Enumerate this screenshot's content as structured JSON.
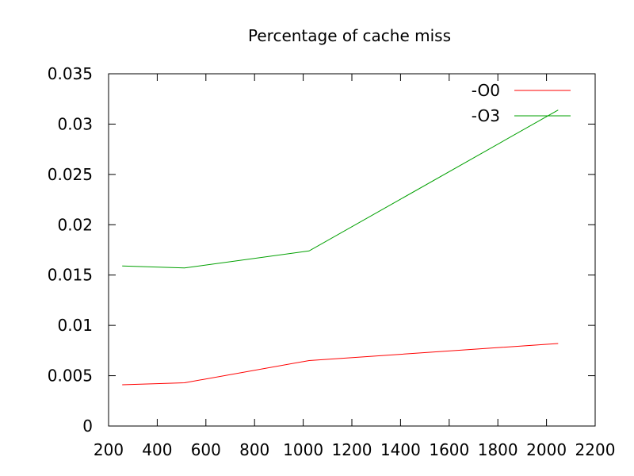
{
  "chart_data": {
    "type": "line",
    "title": "Percentage of cache miss",
    "xlabel": "",
    "ylabel": "",
    "xlim": [
      200,
      2200
    ],
    "ylim": [
      0,
      0.035
    ],
    "grid": false,
    "legend_position": "top-right",
    "x_ticks": [
      "200",
      "400",
      "600",
      "800",
      "1000",
      "1200",
      "1400",
      "1600",
      "1800",
      "2000",
      "2200"
    ],
    "y_ticks": [
      "0",
      "0.005",
      "0.01",
      "0.015",
      "0.02",
      "0.025",
      "0.03",
      "0.035"
    ],
    "x": [
      256,
      512,
      1024,
      2048
    ],
    "series": [
      {
        "name": "-O0",
        "color": "#ff0000",
        "values": [
          0.0041,
          0.0043,
          0.0065,
          0.0082
        ]
      },
      {
        "name": "-O3",
        "color": "#00a000",
        "values": [
          0.0159,
          0.0157,
          0.0174,
          0.0314
        ]
      }
    ]
  }
}
